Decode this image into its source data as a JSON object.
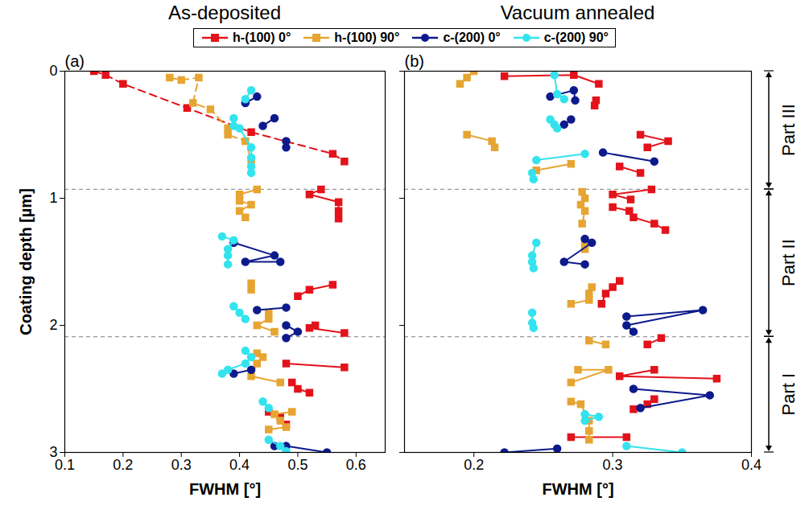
{
  "chart_data": [
    {
      "type": "line",
      "title": "As-deposited",
      "panel_label": "(a)",
      "xlabel": "FWHM [°]",
      "ylabel": "Coating depth [µm]",
      "xlim": [
        0.1,
        0.65
      ],
      "xticks": [
        0.1,
        0.2,
        0.3,
        0.4,
        0.5,
        0.6
      ],
      "ylim": [
        3,
        0
      ],
      "yticks": [
        0,
        1,
        2,
        3
      ],
      "legend": "top",
      "dividers": [
        0.93,
        2.09
      ],
      "series": [
        {
          "name": "h-(100) 0°",
          "color": "#e3121b",
          "marker": "square",
          "line_style": "solid",
          "segments": [
            {
              "line_style": "dashed",
              "x": [
                0.15,
                0.17,
                0.2,
                0.31,
                0.42,
                0.56,
                0.58
              ],
              "y": [
                0.0,
                0.03,
                0.1,
                0.29,
                0.48,
                0.65,
                0.71
              ]
            },
            {
              "x": [
                0.54,
                0.52,
                0.57,
                0.57,
                0.57
              ],
              "y": [
                0.93,
                0.97,
                1.03,
                1.1,
                1.16
              ]
            },
            {
              "x": [
                0.56,
                0.52,
                0.5
              ],
              "y": [
                1.68,
                1.72,
                1.77
              ]
            },
            {
              "x": [
                0.53,
                0.52,
                0.58
              ],
              "y": [
                2.0,
                2.02,
                2.06
              ]
            },
            {
              "x": [
                0.48,
                0.58
              ],
              "y": [
                2.3,
                2.33
              ]
            },
            {
              "x": [
                0.49,
                0.5,
                0.52
              ],
              "y": [
                2.45,
                2.5,
                2.53
              ]
            },
            {
              "x": [
                0.45,
                0.47,
                0.48
              ],
              "y": [
                2.68,
                2.72,
                2.78
              ]
            }
          ]
        },
        {
          "name": "h-(100) 90°",
          "color": "#e6a532",
          "marker": "square",
          "line_style": "solid",
          "segments": [
            {
              "line_style": "dashed",
              "x": [
                0.28,
                0.3,
                0.33,
                0.32,
                0.35,
                0.38,
                0.38,
                0.41,
                0.42
              ],
              "y": [
                0.05,
                0.07,
                0.05,
                0.25,
                0.3,
                0.45,
                0.5,
                0.55,
                0.7
              ]
            },
            {
              "x": [
                0.43,
                0.4,
                0.4,
                0.42,
                0.4,
                0.41
              ],
              "y": [
                0.93,
                0.97,
                1.02,
                1.05,
                1.1,
                1.15
              ]
            },
            {
              "x": [
                0.42,
                0.42
              ],
              "y": [
                1.67,
                1.72
              ]
            },
            {
              "x": [
                0.45,
                0.45,
                0.43,
                0.46
              ],
              "y": [
                1.9,
                1.95,
                2.0,
                2.05
              ]
            },
            {
              "x": [
                0.43,
                0.44,
                0.43,
                0.42,
                0.47
              ],
              "y": [
                2.22,
                2.25,
                2.3,
                2.4,
                2.45
              ]
            },
            {
              "x": [
                0.49,
                0.46,
                0.47,
                0.48,
                0.45
              ],
              "y": [
                2.68,
                2.7,
                2.75,
                2.8,
                2.82
              ]
            }
          ]
        },
        {
          "name": "c-(200) 0°",
          "color": "#0d1a8c",
          "marker": "circle",
          "line_style": "solid",
          "segments": [
            {
              "x": [
                0.41,
                0.43
              ],
              "y": [
                0.25,
                0.2
              ]
            },
            {
              "x": [
                0.44,
                0.46
              ],
              "y": [
                0.43,
                0.37
              ]
            },
            {
              "x": [
                0.48,
                0.48
              ],
              "y": [
                0.55,
                0.6
              ]
            },
            {
              "x": [
                0.39,
                0.46,
                0.41,
                0.47
              ],
              "y": [
                1.35,
                1.45,
                1.5,
                1.5
              ]
            },
            {
              "x": [
                0.43,
                0.48
              ],
              "y": [
                1.88,
                1.86
              ]
            },
            {
              "x": [
                0.48,
                0.5,
                0.48
              ],
              "y": [
                2.0,
                2.05,
                2.1
              ]
            },
            {
              "x": [
                0.42,
                0.39
              ],
              "y": [
                2.35,
                2.38
              ]
            },
            {
              "x": [
                0.46,
                0.48,
                0.55
              ],
              "y": [
                2.95,
                2.95,
                3.0
              ]
            }
          ]
        },
        {
          "name": "c-(200) 90°",
          "color": "#33e3ee",
          "marker": "circle",
          "line_style": "solid",
          "segments": [
            {
              "x": [
                0.41,
                0.42
              ],
              "y": [
                0.22,
                0.15
              ]
            },
            {
              "x": [
                0.39,
                0.39,
                0.4,
                0.42,
                0.42,
                0.42,
                0.42
              ],
              "y": [
                0.37,
                0.43,
                0.45,
                0.6,
                0.68,
                0.75,
                0.8
              ]
            },
            {
              "x": [
                0.37,
                0.39,
                0.38,
                0.38,
                0.38
              ],
              "y": [
                1.3,
                1.33,
                1.4,
                1.45,
                1.52
              ]
            },
            {
              "x": [
                0.39,
                0.4,
                0.41
              ],
              "y": [
                1.85,
                1.9,
                1.95
              ]
            },
            {
              "x": [
                0.41,
                0.42,
                0.41,
                0.38,
                0.37
              ],
              "y": [
                2.2,
                2.25,
                2.3,
                2.35,
                2.38
              ]
            },
            {
              "x": [
                0.44,
                0.45
              ],
              "y": [
                2.6,
                2.65
              ]
            },
            {
              "x": [
                0.45,
                0.47,
                0.48
              ],
              "y": [
                2.9,
                2.95,
                2.99
              ]
            }
          ]
        }
      ]
    },
    {
      "type": "line",
      "title": "Vacuum annealed",
      "panel_label": "(b)",
      "xlabel": "FWHM [°]",
      "xlim": [
        0.15,
        0.4
      ],
      "xticks": [
        0.2,
        0.3,
        0.4
      ],
      "ylim": [
        3,
        0
      ],
      "yticks": [
        0,
        1,
        2,
        3
      ],
      "tick_labels": "x",
      "dividers": [
        0.93,
        2.09
      ],
      "parts": [
        {
          "label": "Part III",
          "from": 0,
          "to": 0.93
        },
        {
          "label": "Part II",
          "from": 0.93,
          "to": 2.09
        },
        {
          "label": "Part I",
          "from": 2.09,
          "to": 3
        }
      ],
      "series": [
        {
          "name": "h-(100) 0°",
          "color": "#e3121b",
          "marker": "square",
          "line_style": "solid",
          "segments": [
            {
              "x": [
                0.222,
                0.272,
                0.29
              ],
              "y": [
                0.04,
                0.03,
                0.1
              ]
            },
            {
              "x": [
                0.288,
                0.287
              ],
              "y": [
                0.23,
                0.27
              ]
            },
            {
              "x": [
                0.32,
                0.34,
                0.325
              ],
              "y": [
                0.5,
                0.55,
                0.6
              ]
            },
            {
              "x": [
                0.305,
                0.32
              ],
              "y": [
                0.75,
                0.8
              ]
            },
            {
              "x": [
                0.328,
                0.3,
                0.313
              ],
              "y": [
                0.93,
                0.97,
                1.01
              ]
            },
            {
              "x": [
                0.3,
                0.312,
                0.315,
                0.33,
                0.338
              ],
              "y": [
                1.07,
                1.1,
                1.15,
                1.2,
                1.25
              ]
            },
            {
              "x": [
                0.305,
                0.3,
                0.295,
                0.292
              ],
              "y": [
                1.65,
                1.7,
                1.75,
                1.83
              ]
            },
            {
              "x": [
                0.325,
                0.335
              ],
              "y": [
                2.15,
                2.1
              ]
            },
            {
              "x": [
                0.33,
                0.305,
                0.375
              ],
              "y": [
                2.35,
                2.4,
                2.42
              ]
            },
            {
              "x": [
                0.33,
                0.325,
                0.315
              ],
              "y": [
                2.58,
                2.62,
                2.66
              ]
            },
            {
              "x": [
                0.27,
                0.31
              ],
              "y": [
                2.88,
                2.88
              ]
            }
          ]
        },
        {
          "name": "h-(100) 90°",
          "color": "#e6a532",
          "marker": "square",
          "line_style": "solid",
          "segments": [
            {
              "x": [
                0.2,
                0.195,
                0.19
              ],
              "y": [
                0.0,
                0.05,
                0.1
              ]
            },
            {
              "x": [
                0.195,
                0.213,
                0.215
              ],
              "y": [
                0.5,
                0.55,
                0.6
              ]
            },
            {
              "x": [
                0.245,
                0.27
              ],
              "y": [
                0.78,
                0.73
              ]
            },
            {
              "x": [
                0.278,
                0.28,
                0.277,
                0.28,
                0.278
              ],
              "y": [
                0.95,
                1.0,
                1.05,
                1.1,
                1.2
              ]
            },
            {
              "x": [
                0.28,
                0.28
              ],
              "y": [
                1.35,
                1.4
              ]
            },
            {
              "x": [
                0.285,
                0.283,
                0.283,
                0.27
              ],
              "y": [
                1.7,
                1.75,
                1.8,
                1.83
              ]
            },
            {
              "x": [
                0.283,
                0.295
              ],
              "y": [
                2.12,
                2.15
              ]
            },
            {
              "x": [
                0.275,
                0.297,
                0.27
              ],
              "y": [
                2.35,
                2.35,
                2.45
              ]
            },
            {
              "x": [
                0.27,
                0.277,
                0.283,
                0.283,
                0.283
              ],
              "y": [
                2.6,
                2.62,
                2.75,
                2.83,
                2.9
              ]
            }
          ]
        },
        {
          "name": "c-(200) 0°",
          "color": "#0d1a8c",
          "marker": "circle",
          "line_style": "solid",
          "segments": [
            {
              "x": [
                0.255,
                0.272,
                0.273
              ],
              "y": [
                0.2,
                0.15,
                0.23
              ]
            },
            {
              "x": [
                0.27,
                0.265
              ],
              "y": [
                0.38,
                0.42
              ]
            },
            {
              "x": [
                0.293,
                0.33
              ],
              "y": [
                0.64,
                0.71
              ]
            },
            {
              "x": [
                0.28,
                0.285,
                0.265,
                0.28
              ],
              "y": [
                1.32,
                1.35,
                1.5,
                1.52
              ]
            },
            {
              "x": [
                0.31,
                0.365,
                0.31,
                0.315
              ],
              "y": [
                1.93,
                1.88,
                2.0,
                2.05
              ]
            },
            {
              "x": [
                0.315,
                0.37,
                0.32
              ],
              "y": [
                2.5,
                2.55,
                2.65
              ]
            },
            {
              "x": [
                0.222,
                0.26
              ],
              "y": [
                3.0,
                2.97
              ]
            }
          ]
        },
        {
          "name": "c-(200) 90°",
          "color": "#33e3ee",
          "marker": "circle",
          "line_style": "solid",
          "segments": [
            {
              "x": [
                0.258,
                0.26,
                0.265
              ],
              "y": [
                0.03,
                0.18,
                0.22
              ]
            },
            {
              "x": [
                0.255,
                0.258,
                0.26
              ],
              "y": [
                0.38,
                0.42,
                0.45
              ]
            },
            {
              "x": [
                0.245,
                0.28
              ],
              "y": [
                0.7,
                0.65
              ]
            },
            {
              "x": [
                0.242,
                0.243
              ],
              "y": [
                0.8,
                0.85
              ]
            },
            {
              "x": [
                0.245,
                0.242,
                0.242,
                0.243
              ],
              "y": [
                1.35,
                1.45,
                1.5,
                1.55
              ]
            },
            {
              "x": [
                0.242,
                0.242,
                0.243
              ],
              "y": [
                1.9,
                1.98,
                2.02
              ]
            },
            {
              "x": [
                0.28,
                0.29,
                0.28
              ],
              "y": [
                2.7,
                2.72,
                2.75
              ]
            },
            {
              "x": [
                0.31,
                0.35
              ],
              "y": [
                2.95,
                3.0
              ]
            }
          ]
        }
      ]
    }
  ]
}
